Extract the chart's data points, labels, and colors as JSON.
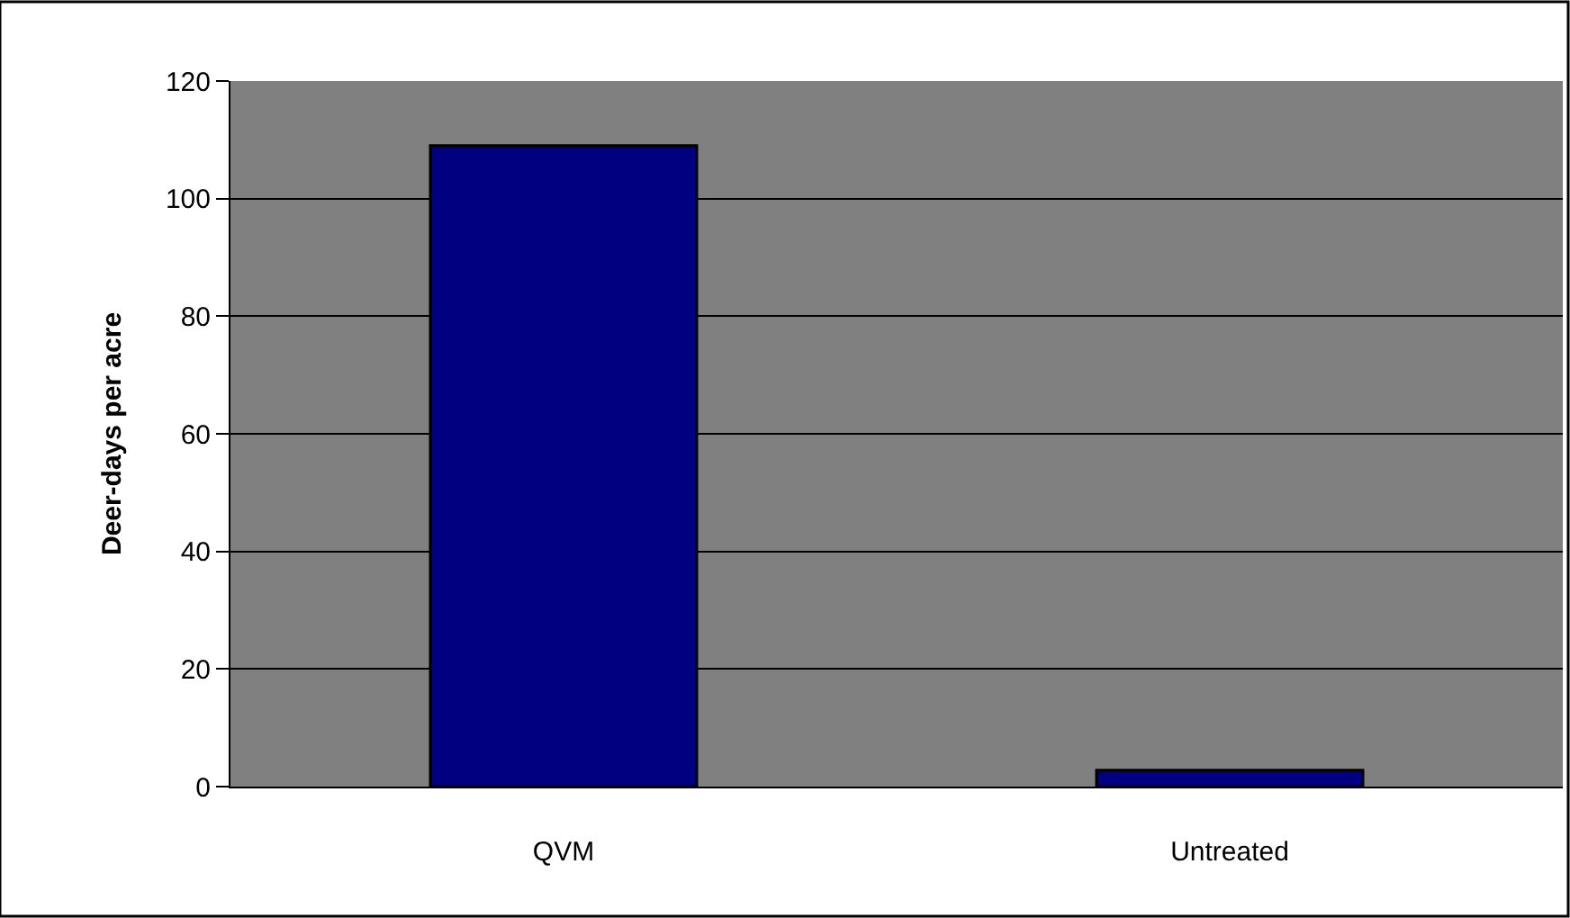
{
  "chart_data": {
    "type": "bar",
    "ylabel": "Deer-days per acre",
    "categories": [
      "QVM",
      "Untreated"
    ],
    "values": [
      109,
      2.8
    ],
    "color": "#000080",
    "ylim": [
      0,
      120
    ],
    "yticks": [
      0,
      20,
      40,
      60,
      80,
      100,
      120
    ],
    "grid": "y"
  }
}
